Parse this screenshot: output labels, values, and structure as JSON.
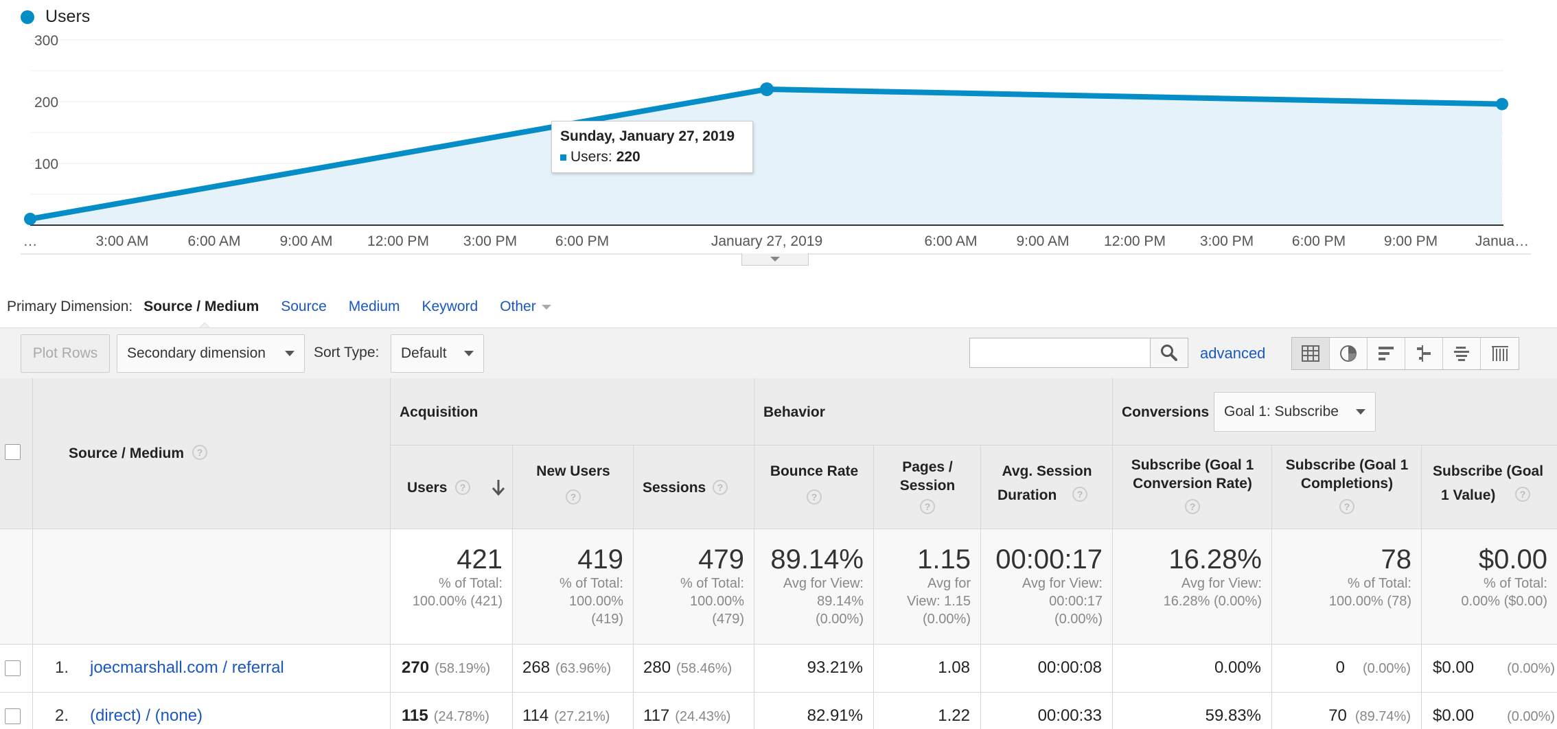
{
  "chart": {
    "legend_label": "Users",
    "accent": "#058dc7",
    "tooltip": {
      "date": "Sunday, January 27, 2019",
      "series": "Users:",
      "value": "220"
    }
  },
  "chart_data": {
    "type": "area",
    "series": [
      {
        "name": "Users",
        "x": [
          "…",
          "January 27, 2019",
          "Janua…"
        ],
        "values": [
          10,
          220,
          196
        ]
      }
    ],
    "y_ticks": [
      "100",
      "200",
      "300"
    ],
    "ylim": [
      0,
      300
    ],
    "x_tick_labels": [
      "…",
      "3:00 AM",
      "6:00 AM",
      "9:00 AM",
      "12:00 PM",
      "3:00 PM",
      "6:00 PM",
      "January 27, 2019",
      "6:00 AM",
      "9:00 AM",
      "12:00 PM",
      "3:00 PM",
      "6:00 PM",
      "9:00 PM",
      "Janua…"
    ],
    "grid": true,
    "legend": "top-left"
  },
  "dimensions": {
    "label": "Primary Dimension:",
    "active": "Source / Medium",
    "links": [
      "Source",
      "Medium",
      "Keyword"
    ],
    "other": "Other"
  },
  "toolbar": {
    "plot_rows": "Plot Rows",
    "secondary_dimension": "Secondary dimension",
    "sort_type_label": "Sort Type:",
    "sort_type_value": "Default",
    "search_value": "",
    "advanced": "advanced"
  },
  "table": {
    "groups": {
      "acquisition": "Acquisition",
      "behavior": "Behavior",
      "conversions": "Conversions",
      "goal_select": "Goal 1: Subscribe"
    },
    "dim_header": "Source / Medium",
    "columns": {
      "users": "Users",
      "new_users": "New Users",
      "sessions": "Sessions",
      "bounce_rate": "Bounce Rate",
      "pages_session_1": "Pages /",
      "pages_session_2": "Session",
      "avg_session_1": "Avg. Session",
      "avg_session_2": "Duration",
      "conv_rate_1": "Subscribe (Goal 1",
      "conv_rate_2": "Conversion Rate)",
      "completions_1": "Subscribe (Goal 1",
      "completions_2": "Completions)",
      "value_1": "Subscribe (Goal",
      "value_2": "1 Value)"
    },
    "totals": {
      "users": {
        "big": "421",
        "l1": "% of Total:",
        "l2": "100.00% (421)"
      },
      "new_users": {
        "big": "419",
        "l1": "% of Total:",
        "l2": "100.00%",
        "l3": "(419)"
      },
      "sessions": {
        "big": "479",
        "l1": "% of Total:",
        "l2": "100.00%",
        "l3": "(479)"
      },
      "bounce_rate": {
        "big": "89.14%",
        "l1": "Avg for View:",
        "l2": "89.14%",
        "l3": "(0.00%)"
      },
      "pages_session": {
        "big": "1.15",
        "l1": "Avg for",
        "l2": "View: 1.15",
        "l3": "(0.00%)"
      },
      "avg_session": {
        "big": "00:00:17",
        "l1": "Avg for View:",
        "l2": "00:00:17",
        "l3": "(0.00%)"
      },
      "conv_rate": {
        "big": "16.28%",
        "l1": "Avg for View:",
        "l2": "16.28% (0.00%)"
      },
      "completions": {
        "big": "78",
        "l1": "% of Total:",
        "l2": "100.00% (78)"
      },
      "value": {
        "big": "$0.00",
        "l1": "% of Total:",
        "l2": "0.00% ($0.00)"
      }
    },
    "rows": [
      {
        "num": "1.",
        "name": "joecmarshall.com / referral",
        "users": "270",
        "users_pct": "(58.19%)",
        "new_users": "268",
        "new_users_pct": "(63.96%)",
        "sessions": "280",
        "sessions_pct": "(58.46%)",
        "bounce_rate": "93.21%",
        "pages_session": "1.08",
        "avg_session": "00:00:08",
        "conv_rate": "0.00%",
        "completions": "0",
        "completions_pct": "(0.00%)",
        "value": "$0.00",
        "value_pct": "(0.00%)"
      },
      {
        "num": "2.",
        "name": "(direct) / (none)",
        "users": "115",
        "users_pct": "(24.78%)",
        "new_users": "114",
        "new_users_pct": "(27.21%)",
        "sessions": "117",
        "sessions_pct": "(24.43%)",
        "bounce_rate": "82.91%",
        "pages_session": "1.22",
        "avg_session": "00:00:33",
        "conv_rate": "59.83%",
        "completions": "70",
        "completions_pct": "(89.74%)",
        "value": "$0.00",
        "value_pct": "(0.00%)"
      }
    ]
  }
}
